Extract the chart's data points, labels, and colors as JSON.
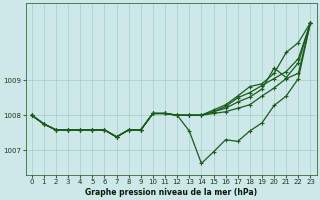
{
  "title": "Graphe pression niveau de la mer (hPa)",
  "bg_color": "#cce8e8",
  "grid_color": "#aacccc",
  "line_color": "#1a5c1a",
  "xlim": [
    -0.5,
    23.5
  ],
  "ylim": [
    1006.3,
    1011.2
  ],
  "yticks": [
    1007,
    1008,
    1009
  ],
  "xticks": [
    0,
    1,
    2,
    3,
    4,
    5,
    6,
    7,
    8,
    9,
    10,
    11,
    12,
    13,
    14,
    15,
    16,
    17,
    18,
    19,
    20,
    21,
    22,
    23
  ],
  "lines": [
    {
      "x": [
        0,
        1,
        2,
        3,
        4,
        5,
        6,
        7,
        8,
        9,
        10,
        11,
        12,
        13,
        14,
        15,
        16,
        17,
        18,
        19,
        20,
        21,
        22,
        23
      ],
      "y": [
        1008.0,
        1007.75,
        1007.58,
        1007.58,
        1007.58,
        1007.58,
        1007.58,
        1007.38,
        1007.58,
        1007.58,
        1008.05,
        1008.05,
        1008.0,
        1007.55,
        1006.62,
        1006.95,
        1007.3,
        1007.25,
        1007.55,
        1007.78,
        1008.28,
        1008.55,
        1009.05,
        1010.65
      ]
    },
    {
      "x": [
        0,
        1,
        2,
        3,
        4,
        5,
        6,
        7,
        8,
        9,
        10,
        11,
        12,
        13,
        14,
        15,
        16,
        17,
        18,
        19,
        20,
        21,
        22,
        23
      ],
      "y": [
        1008.0,
        1007.75,
        1007.58,
        1007.58,
        1007.58,
        1007.58,
        1007.58,
        1007.38,
        1007.58,
        1007.58,
        1008.05,
        1008.05,
        1008.0,
        1008.0,
        1008.0,
        1008.05,
        1008.1,
        1008.2,
        1008.3,
        1008.55,
        1008.78,
        1009.05,
        1009.2,
        1010.65
      ]
    },
    {
      "x": [
        0,
        1,
        2,
        3,
        4,
        5,
        6,
        7,
        8,
        9,
        10,
        11,
        12,
        13,
        14,
        15,
        16,
        17,
        18,
        19,
        20,
        21,
        22,
        23
      ],
      "y": [
        1008.0,
        1007.75,
        1007.58,
        1007.58,
        1007.58,
        1007.58,
        1007.58,
        1007.38,
        1007.58,
        1007.58,
        1008.05,
        1008.05,
        1008.0,
        1008.0,
        1008.0,
        1008.1,
        1008.2,
        1008.38,
        1008.52,
        1008.75,
        1009.35,
        1009.08,
        1009.5,
        1010.65
      ]
    },
    {
      "x": [
        0,
        1,
        2,
        3,
        4,
        5,
        6,
        7,
        8,
        9,
        10,
        11,
        12,
        13,
        14,
        15,
        16,
        17,
        18,
        19,
        20,
        21,
        22,
        23
      ],
      "y": [
        1008.0,
        1007.75,
        1007.58,
        1007.58,
        1007.58,
        1007.58,
        1007.58,
        1007.38,
        1007.58,
        1007.58,
        1008.05,
        1008.05,
        1008.0,
        1008.0,
        1008.0,
        1008.1,
        1008.25,
        1008.5,
        1008.65,
        1008.85,
        1009.05,
        1009.25,
        1009.62,
        1010.65
      ]
    },
    {
      "x": [
        0,
        1,
        2,
        3,
        4,
        5,
        6,
        7,
        8,
        9,
        10,
        11,
        12,
        13,
        14,
        15,
        16,
        17,
        18,
        19,
        20,
        21,
        22,
        23
      ],
      "y": [
        1008.0,
        1007.75,
        1007.58,
        1007.58,
        1007.58,
        1007.58,
        1007.58,
        1007.38,
        1007.58,
        1007.58,
        1008.05,
        1008.05,
        1008.0,
        1008.0,
        1008.0,
        1008.15,
        1008.3,
        1008.55,
        1008.82,
        1008.9,
        1009.2,
        1009.8,
        1010.08,
        1010.65
      ]
    }
  ]
}
